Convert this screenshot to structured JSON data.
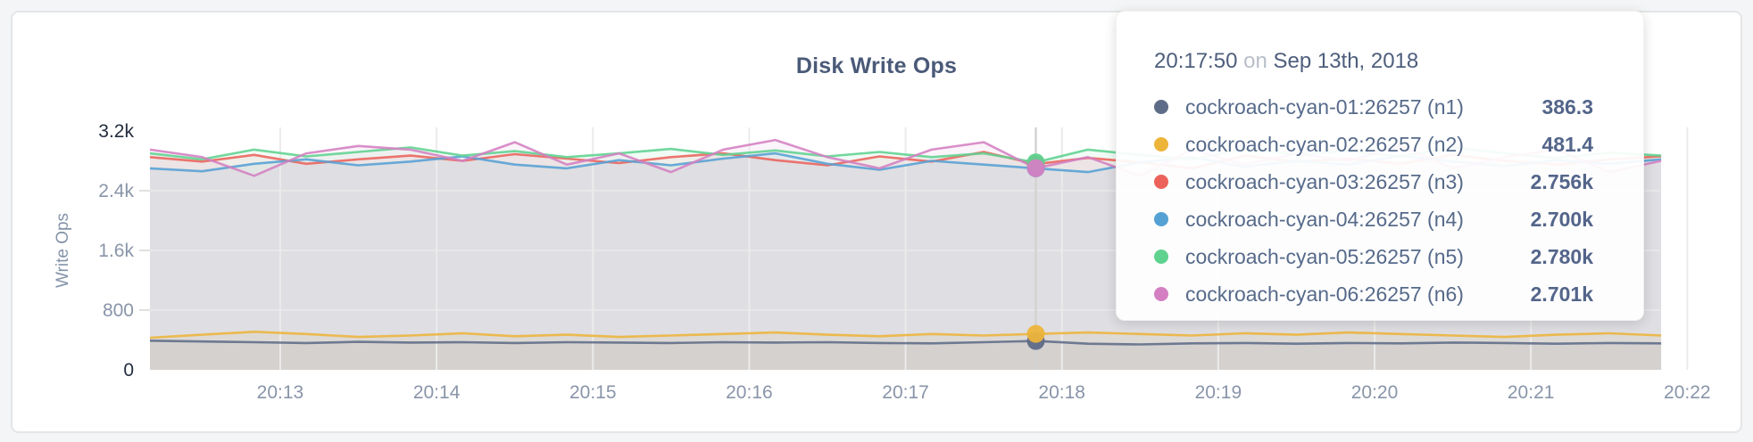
{
  "page_title": "Disk Write Ops",
  "tooltip": {
    "time": "20:17:50",
    "preposition": "on",
    "date": "Sep 13th, 2018",
    "rows": [
      {
        "label": "cockroach-cyan-01:26257 (n1)",
        "value": "386.3",
        "color": "#5F6C87"
      },
      {
        "label": "cockroach-cyan-02:26257 (n2)",
        "value": "481.4",
        "color": "#EDB43A"
      },
      {
        "label": "cockroach-cyan-03:26257 (n3)",
        "value": "2.756k",
        "color": "#EC625B"
      },
      {
        "label": "cockroach-cyan-04:26257 (n4)",
        "value": "2.700k",
        "color": "#55A1D4"
      },
      {
        "label": "cockroach-cyan-05:26257 (n5)",
        "value": "2.780k",
        "color": "#5FD28F"
      },
      {
        "label": "cockroach-cyan-06:26257 (n6)",
        "value": "2.701k",
        "color": "#D47FC2"
      }
    ]
  },
  "chart_data": {
    "type": "line",
    "title": "Disk Write Ops",
    "xlabel": "",
    "ylabel": "Write Ops",
    "ylim": [
      0,
      3200
    ],
    "grid": true,
    "legend_position": "tooltip-overlay",
    "y_ticks": [
      {
        "label": "3.2k",
        "value": 3200,
        "emphasis": true
      },
      {
        "label": "2.4k",
        "value": 2400,
        "emphasis": false
      },
      {
        "label": "1.6k",
        "value": 1600,
        "emphasis": false
      },
      {
        "label": "800",
        "value": 800,
        "emphasis": false
      },
      {
        "label": "0",
        "value": 0,
        "emphasis": true
      }
    ],
    "x_ticks": [
      {
        "label": "20:13",
        "t": 50
      },
      {
        "label": "20:14",
        "t": 110
      },
      {
        "label": "20:15",
        "t": 170
      },
      {
        "label": "20:16",
        "t": 230
      },
      {
        "label": "20:17",
        "t": 290
      },
      {
        "label": "20:18",
        "t": 350
      },
      {
        "label": "20:19",
        "t": 410
      },
      {
        "label": "20:20",
        "t": 470
      },
      {
        "label": "20:21",
        "t": 530
      },
      {
        "label": "20:22",
        "t": 590
      }
    ],
    "x_domain_seconds": [
      0,
      594
    ],
    "x_start_time": "20:12:10",
    "sample_interval_seconds": 20,
    "hover": {
      "t": 340,
      "time": "20:17:50",
      "index": 17
    },
    "series": [
      {
        "name": "cockroach-cyan-01:26257 (n1)",
        "color": "#5F6C87",
        "values": [
          390,
          380,
          370,
          360,
          375,
          365,
          370,
          360,
          370,
          365,
          360,
          370,
          365,
          370,
          360,
          355,
          370,
          386.3,
          350,
          340,
          355,
          360,
          350,
          360,
          355,
          365,
          360,
          350,
          360,
          355
        ]
      },
      {
        "name": "cockroach-cyan-02:26257 (n2)",
        "color": "#EDB43A",
        "values": [
          430,
          470,
          510,
          480,
          440,
          460,
          490,
          450,
          470,
          440,
          460,
          480,
          500,
          470,
          450,
          480,
          460,
          481.4,
          500,
          480,
          460,
          490,
          470,
          500,
          480,
          460,
          440,
          470,
          490,
          460
        ]
      },
      {
        "name": "cockroach-cyan-03:26257 (n3)",
        "color": "#EC625B",
        "values": [
          2850,
          2790,
          2880,
          2760,
          2820,
          2870,
          2800,
          2890,
          2830,
          2770,
          2850,
          2900,
          2810,
          2740,
          2860,
          2790,
          2920,
          2756,
          2840,
          2780,
          2700,
          2870,
          2790,
          2830,
          2760,
          2880,
          2800,
          2750,
          2820,
          2860
        ]
      },
      {
        "name": "cockroach-cyan-04:26257 (n4)",
        "color": "#55A1D4",
        "values": [
          2700,
          2660,
          2760,
          2820,
          2740,
          2790,
          2860,
          2750,
          2700,
          2810,
          2740,
          2830,
          2900,
          2760,
          2680,
          2800,
          2750,
          2700,
          2650,
          2780,
          2850,
          2720,
          2800,
          2750,
          2870,
          2790,
          2730,
          2810,
          2760,
          2820
        ]
      },
      {
        "name": "cockroach-cyan-05:26257 (n5)",
        "color": "#5FD28F",
        "values": [
          2900,
          2820,
          2950,
          2860,
          2920,
          2980,
          2870,
          2930,
          2850,
          2900,
          2960,
          2880,
          2940,
          2860,
          2920,
          2850,
          2900,
          2780,
          2950,
          2880,
          2820,
          2960,
          2890,
          2930,
          2860,
          2980,
          2900,
          2840,
          2910,
          2870
        ]
      },
      {
        "name": "cockroach-cyan-06:26257 (n6)",
        "color": "#D47FC2",
        "values": [
          2950,
          2850,
          2600,
          2900,
          3000,
          2950,
          2800,
          3050,
          2750,
          2900,
          2650,
          2950,
          3080,
          2850,
          2700,
          2950,
          3050,
          2701,
          2850,
          2600,
          2950,
          2750,
          2900,
          2800,
          3000,
          2700,
          2850,
          2950,
          2650,
          2800
        ]
      }
    ]
  },
  "colors": {
    "title": "#4a5a78",
    "axis_tick": "#8995a9",
    "axis_tick_emphasis": "#232d3f",
    "gridline": "#ebebeb",
    "guideline": "#d2d2d2",
    "card_border": "#e4e5e6",
    "page_background": "#f4f5f6"
  }
}
